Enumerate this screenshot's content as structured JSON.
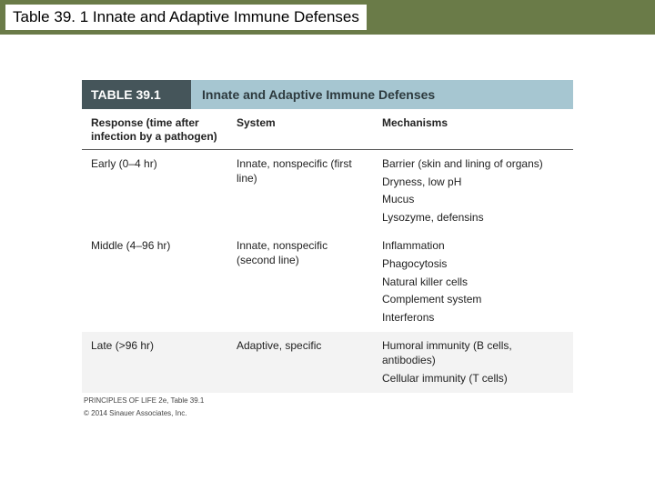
{
  "topBar": {
    "title": "Table 39. 1 Innate and Adaptive Immune Defenses"
  },
  "table": {
    "header": {
      "leftLabel": "TABLE 39.1",
      "rightLabel": "Innate and Adaptive Immune Defenses"
    },
    "columns": {
      "c1": "Response (time after infection by a pathogen)",
      "c2": "System",
      "c3": "Mechanisms"
    },
    "rows": [
      {
        "time": "Early (0–4 hr)",
        "system": "Innate, nonspecific (first line)",
        "mechs": [
          "Barrier (skin and lining of organs)",
          "Dryness, low pH",
          "Mucus",
          "Lysozyme, defensins"
        ],
        "stripe": false
      },
      {
        "time": "Middle (4–96 hr)",
        "system": "Innate, nonspecific (second line)",
        "mechs": [
          "Inflammation",
          "Phagocytosis",
          "Natural killer cells",
          "Complement system",
          "Interferons"
        ],
        "stripe": false
      },
      {
        "time": "Late (>96 hr)",
        "system": "Adaptive, specific",
        "mechs": [
          "Humoral immunity (B cells, antibodies)",
          "Cellular immunity (T cells)"
        ],
        "stripe": true
      }
    ],
    "credit1": "PRINCIPLES OF LIFE 2e, Table 39.1",
    "credit2": "© 2014 Sinauer Associates, Inc."
  },
  "colors": {
    "topBar": "#6a7b48",
    "headerDark": "#45555a",
    "headerLight": "#a6c6d1",
    "stripe": "#f3f3f3"
  }
}
